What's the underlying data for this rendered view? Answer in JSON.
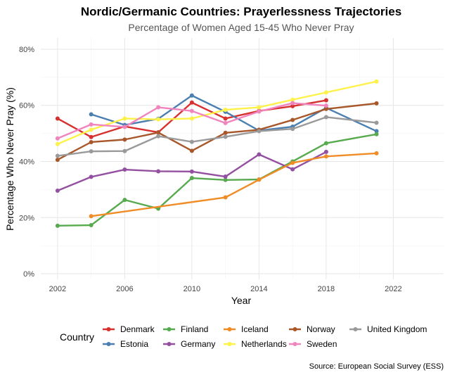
{
  "chart_data": {
    "type": "line",
    "title": "Nordic/Germanic Countries: Prayerlessness Trajectories",
    "subtitle": "Percentage of Women Aged 15-45 Who Never Pray",
    "xlabel": "Year",
    "ylabel": "Percentage Who Never Pray (%)",
    "caption": "Source: European Social Survey (ESS)",
    "legend_title": "Country",
    "legend_position": "bottom",
    "grid": true,
    "xlim": [
      2001,
      2025
    ],
    "ylim": [
      -2,
      84
    ],
    "x_ticks": [
      2002,
      2006,
      2010,
      2014,
      2018,
      2022
    ],
    "x_tick_labels": [
      "2002",
      "2006",
      "2010",
      "2014",
      "2018",
      "2022"
    ],
    "y_ticks": [
      0,
      20,
      40,
      60,
      80
    ],
    "y_tick_labels": [
      "0%",
      "20%",
      "40%",
      "60%",
      "80%"
    ],
    "series": [
      {
        "name": "Denmark",
        "color": "#d7312f",
        "points": [
          [
            2002,
            55.3
          ],
          [
            2004,
            48.7
          ],
          [
            2006,
            52.5
          ],
          [
            2008,
            50.4
          ],
          [
            2010,
            61.0
          ],
          [
            2012,
            55.3
          ],
          [
            2014,
            58.0
          ],
          [
            2016,
            59.7
          ],
          [
            2018,
            61.8
          ]
        ]
      },
      {
        "name": "Estonia",
        "color": "#4a7fb0",
        "points": [
          [
            2004,
            56.8
          ],
          [
            2006,
            53.0
          ],
          [
            2008,
            55.2
          ],
          [
            2010,
            63.5
          ],
          [
            2012,
            57.7
          ],
          [
            2014,
            51.0
          ],
          [
            2016,
            52.4
          ],
          [
            2018,
            59.1
          ],
          [
            2021,
            50.8
          ]
        ]
      },
      {
        "name": "Finland",
        "color": "#57aa4d",
        "points": [
          [
            2002,
            17.1
          ],
          [
            2004,
            17.3
          ],
          [
            2006,
            26.3
          ],
          [
            2008,
            23.2
          ],
          [
            2010,
            34.1
          ],
          [
            2012,
            33.4
          ],
          [
            2014,
            33.6
          ],
          [
            2016,
            40.0
          ],
          [
            2018,
            46.5
          ],
          [
            2021,
            49.7
          ]
        ]
      },
      {
        "name": "Germany",
        "color": "#9450a0",
        "points": [
          [
            2002,
            29.6
          ],
          [
            2004,
            34.5
          ],
          [
            2006,
            37.1
          ],
          [
            2008,
            36.5
          ],
          [
            2010,
            36.4
          ],
          [
            2012,
            34.6
          ],
          [
            2014,
            42.5
          ],
          [
            2016,
            37.2
          ],
          [
            2018,
            43.4
          ]
        ]
      },
      {
        "name": "Iceland",
        "color": "#f08c26",
        "points": [
          [
            2004,
            20.5
          ],
          [
            2012,
            27.2
          ],
          [
            2014,
            33.5
          ],
          [
            2016,
            39.5
          ],
          [
            2018,
            41.8
          ],
          [
            2021,
            42.9
          ]
        ]
      },
      {
        "name": "Netherlands",
        "color": "#fef24a",
        "points": [
          [
            2002,
            46.2
          ],
          [
            2004,
            51.3
          ],
          [
            2006,
            55.3
          ],
          [
            2008,
            55.0
          ],
          [
            2010,
            55.3
          ],
          [
            2012,
            58.4
          ],
          [
            2014,
            59.3
          ],
          [
            2016,
            62.0
          ],
          [
            2018,
            64.6
          ],
          [
            2021,
            68.5
          ]
        ]
      },
      {
        "name": "Norway",
        "color": "#a8572a",
        "points": [
          [
            2002,
            40.6
          ],
          [
            2004,
            46.9
          ],
          [
            2006,
            47.8
          ],
          [
            2008,
            50.3
          ],
          [
            2010,
            43.8
          ],
          [
            2012,
            50.2
          ],
          [
            2014,
            51.3
          ],
          [
            2016,
            54.8
          ],
          [
            2018,
            58.7
          ],
          [
            2021,
            60.7
          ]
        ]
      },
      {
        "name": "Sweden",
        "color": "#f084bd",
        "points": [
          [
            2002,
            48.2
          ],
          [
            2004,
            53.2
          ],
          [
            2006,
            52.3
          ],
          [
            2008,
            59.3
          ],
          [
            2010,
            58.0
          ],
          [
            2012,
            53.7
          ],
          [
            2014,
            57.8
          ],
          [
            2016,
            60.8
          ],
          [
            2018,
            59.9
          ]
        ]
      },
      {
        "name": "United Kingdom",
        "color": "#9a9a9a",
        "points": [
          [
            2002,
            42.0
          ],
          [
            2004,
            43.6
          ],
          [
            2006,
            43.7
          ],
          [
            2008,
            49.0
          ],
          [
            2010,
            47.0
          ],
          [
            2012,
            48.8
          ],
          [
            2014,
            50.8
          ],
          [
            2016,
            51.6
          ],
          [
            2018,
            55.8
          ],
          [
            2021,
            53.8
          ]
        ]
      }
    ],
    "legend_rows": [
      [
        "Denmark",
        "Finland",
        "Iceland",
        "Norway",
        "United Kingdom"
      ],
      [
        "Estonia",
        "Germany",
        "Netherlands",
        "Sweden"
      ]
    ]
  }
}
